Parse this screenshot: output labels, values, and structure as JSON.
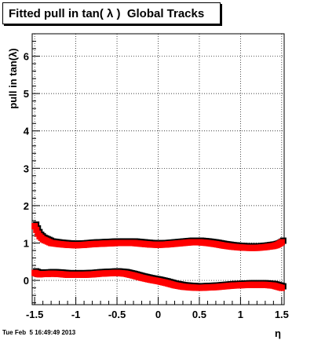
{
  "chart_data": {
    "type": "scatter",
    "title": "Fitted pull in tan( λ )  Global Tracks",
    "xlabel": "η",
    "ylabel": "pull in tan(λ)",
    "xlim": [
      -1.53,
      1.53
    ],
    "ylim": [
      -0.65,
      6.6
    ],
    "xticks": [
      "-1.5",
      "-1",
      "-0.5",
      "0",
      "0.5",
      "1",
      "1.5"
    ],
    "yticks": [
      "0",
      "1",
      "2",
      "3",
      "4",
      "5",
      "6"
    ],
    "grid": true,
    "legend": "none",
    "marker_color": "#ff0000",
    "shadow_color": "#000000",
    "series": [
      {
        "x": [
          -1.5,
          -1.45,
          -1.4,
          -1.35,
          -1.3,
          -1.2,
          -1.1,
          -1.0,
          -0.9,
          -0.8,
          -0.7,
          -0.6,
          -0.5,
          -0.4,
          -0.3,
          -0.2,
          -0.1,
          0.0,
          0.1,
          0.2,
          0.3,
          0.4,
          0.5,
          0.6,
          0.7,
          0.8,
          0.9,
          1.0,
          1.1,
          1.2,
          1.3,
          1.4,
          1.45,
          1.5
        ],
        "values": [
          1.45,
          1.2,
          1.1,
          1.05,
          1.0,
          0.97,
          0.95,
          0.94,
          0.95,
          0.97,
          0.98,
          0.99,
          1.0,
          1.0,
          1.0,
          0.98,
          0.96,
          0.95,
          0.96,
          0.98,
          1.0,
          1.02,
          1.02,
          1.0,
          0.97,
          0.93,
          0.9,
          0.88,
          0.87,
          0.87,
          0.89,
          0.92,
          0.95,
          1.02
        ]
      },
      {
        "x": [
          -1.5,
          -1.45,
          -1.4,
          -1.35,
          -1.3,
          -1.2,
          -1.1,
          -1.0,
          -0.9,
          -0.8,
          -0.7,
          -0.6,
          -0.5,
          -0.4,
          -0.3,
          -0.2,
          -0.1,
          0.0,
          0.1,
          0.2,
          0.3,
          0.4,
          0.5,
          0.6,
          0.7,
          0.8,
          0.9,
          1.0,
          1.1,
          1.2,
          1.3,
          1.4,
          1.45,
          1.5
        ],
        "values": [
          0.2,
          0.16,
          0.17,
          0.17,
          0.18,
          0.17,
          0.15,
          0.15,
          0.15,
          0.16,
          0.18,
          0.19,
          0.2,
          0.18,
          0.13,
          0.07,
          0.02,
          -0.02,
          -0.07,
          -0.13,
          -0.17,
          -0.19,
          -0.2,
          -0.19,
          -0.18,
          -0.16,
          -0.14,
          -0.13,
          -0.12,
          -0.12,
          -0.12,
          -0.14,
          -0.17,
          -0.2
        ]
      }
    ]
  },
  "footer": {
    "timestamp": "Tue Feb  5 16:49:49 2013"
  }
}
